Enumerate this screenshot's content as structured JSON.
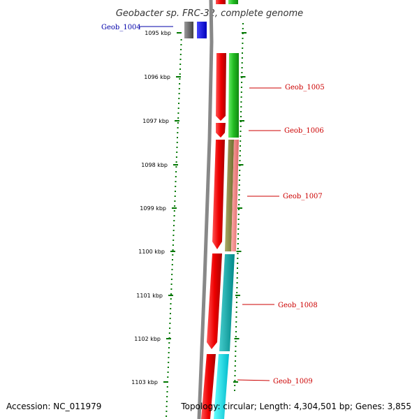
{
  "title": "Geobacter sp. FRC-32, complete genome",
  "footer": {
    "accession": "Accession: NC_011979",
    "topology": "Topology: circular; Length: 4,304,501 bp; Genes: 3,855"
  },
  "kbp_labels": [
    "1095 kbp",
    "1096 kbp",
    "1097 kbp",
    "1098 kbp",
    "1099 kbp",
    "1100 kbp",
    "1101 kbp",
    "1102 kbp",
    "1103 kbp"
  ],
  "genes": [
    {
      "name": "Geob_1004",
      "color": "#0000aa"
    },
    {
      "name": "Geob_1005",
      "color": "#cc0000"
    },
    {
      "name": "Geob_1006",
      "color": "#cc0000"
    },
    {
      "name": "Geob_1007",
      "color": "#cc0000"
    },
    {
      "name": "Geob_1008",
      "color": "#cc0000"
    },
    {
      "name": "Geob_1009",
      "color": "#cc0000"
    }
  ],
  "colors": {
    "forward_strand": "#ee0000",
    "gene_1004_grey": "#666666",
    "gene_1004_blue": "#0000ee",
    "green": "#22bb22",
    "olive": "#8a8a40",
    "pink": "#ee8888",
    "teal": "#00aaaa",
    "cyan": "#00dddd",
    "backbone": "#888888",
    "tick": "#007700"
  }
}
